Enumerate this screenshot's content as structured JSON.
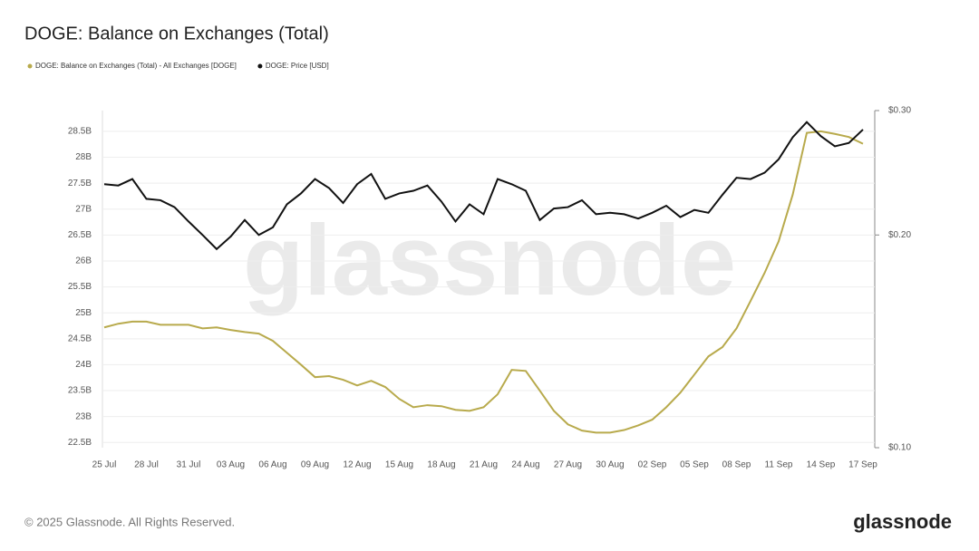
{
  "chart_data": {
    "type": "line",
    "title": "DOGE: Balance on Exchanges (Total)",
    "watermark": "glassnode",
    "footer": "© 2025 Glassnode. All Rights Reserved.",
    "logo": "glassnode",
    "categories": [
      "25 Jul",
      null,
      null,
      "28 Jul",
      null,
      null,
      "31 Jul",
      null,
      null,
      "03 Aug",
      null,
      null,
      "06 Aug",
      null,
      null,
      "09 Aug",
      null,
      null,
      "12 Aug",
      null,
      null,
      "15 Aug",
      null,
      null,
      "18 Aug",
      null,
      null,
      "21 Aug",
      null,
      null,
      "24 Aug",
      null,
      null,
      "27 Aug",
      null,
      null,
      "30 Aug",
      null,
      null,
      "02 Sep",
      null,
      null,
      "05 Sep",
      null,
      null,
      "08 Sep",
      null,
      null,
      "11 Sep",
      null,
      null,
      "14 Sep",
      null,
      null,
      "17 Sep"
    ],
    "series": [
      {
        "name": "DOGE: Balance on Exchanges (Total) - All Exchanges [DOGE]",
        "color": "#b8aa4c",
        "axis": "y",
        "values": [
          24.72,
          24.79,
          24.83,
          24.83,
          24.77,
          24.77,
          24.77,
          24.7,
          24.72,
          24.67,
          24.63,
          24.6,
          24.46,
          24.23,
          24.0,
          23.76,
          23.78,
          23.71,
          23.6,
          23.69,
          23.57,
          23.34,
          23.18,
          23.22,
          23.2,
          23.13,
          23.11,
          23.18,
          23.43,
          23.9,
          23.88,
          23.5,
          23.11,
          22.85,
          22.73,
          22.69,
          22.69,
          22.74,
          22.83,
          22.94,
          23.18,
          23.46,
          23.81,
          24.16,
          24.34,
          24.7,
          25.23,
          25.77,
          26.38,
          27.28,
          28.47,
          28.5,
          28.45,
          28.39,
          28.26
        ]
      },
      {
        "name": "DOGE: Price [USD]",
        "color": "#111111",
        "axis": "y2",
        "values": [
          0.236,
          0.235,
          0.24,
          0.225,
          0.224,
          0.219,
          0.209,
          0.2,
          0.191,
          0.199,
          0.21,
          0.2,
          0.205,
          0.221,
          0.229,
          0.24,
          0.233,
          0.222,
          0.236,
          0.244,
          0.225,
          0.229,
          0.231,
          0.235,
          0.223,
          0.209,
          0.221,
          0.214,
          0.24,
          0.236,
          0.231,
          0.21,
          0.218,
          0.219,
          0.224,
          0.214,
          0.215,
          0.214,
          0.211,
          0.215,
          0.22,
          0.212,
          0.217,
          0.215,
          0.228,
          0.241,
          0.24,
          0.245,
          0.256,
          0.275,
          0.289,
          0.276,
          0.267,
          0.27,
          0.282
        ]
      }
    ],
    "ylim": [
      22.4,
      28.9
    ],
    "yticks": [
      {
        "value": 22.5,
        "label": "22.5B"
      },
      {
        "value": 23,
        "label": "23B"
      },
      {
        "value": 23.5,
        "label": "23.5B"
      },
      {
        "value": 24,
        "label": "24B"
      },
      {
        "value": 24.5,
        "label": "24.5B"
      },
      {
        "value": 25,
        "label": "25B"
      },
      {
        "value": 25.5,
        "label": "25.5B"
      },
      {
        "value": 26,
        "label": "26B"
      },
      {
        "value": 26.5,
        "label": "26.5B"
      },
      {
        "value": 27,
        "label": "27B"
      },
      {
        "value": 27.5,
        "label": "27.5B"
      },
      {
        "value": 28,
        "label": "28B"
      },
      {
        "value": 28.5,
        "label": "28.5B"
      }
    ],
    "y2lim": [
      0.1,
      0.3
    ],
    "y2scale": "log",
    "y2ticks": [
      {
        "value": 0.1,
        "label": "$0.10"
      },
      {
        "value": 0.2,
        "label": "$0.20"
      },
      {
        "value": 0.3,
        "label": "$0.30"
      }
    ],
    "grid": true
  }
}
